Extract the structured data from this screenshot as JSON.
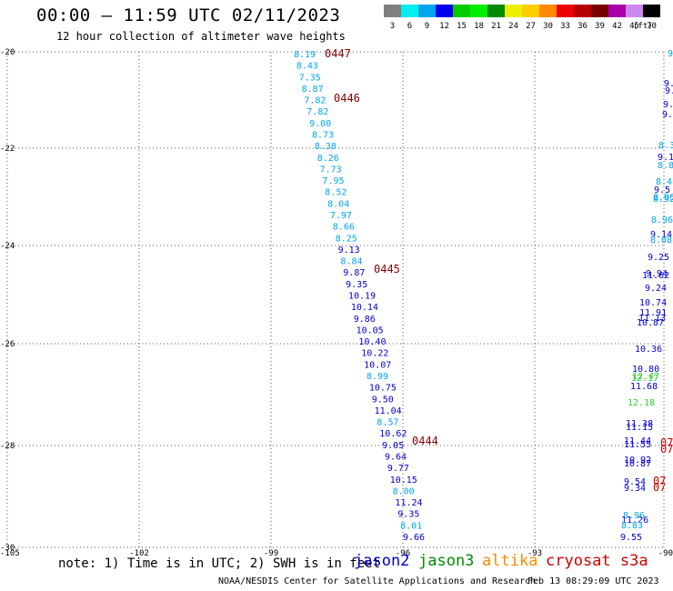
{
  "header": {
    "title": "00:00 – 11:59 UTC 02/11/2023",
    "subtitle": "12 hour collection of altimeter wave heights"
  },
  "color_scale": {
    "bins": [
      {
        "label": "3",
        "color": "#7f7f7f"
      },
      {
        "label": "6",
        "color": "#00eeee"
      },
      {
        "label": "9",
        "color": "#00a6ee"
      },
      {
        "label": "12",
        "color": "#0000ee"
      },
      {
        "label": "15",
        "color": "#00cc00"
      },
      {
        "label": "18",
        "color": "#00ee00"
      },
      {
        "label": "21",
        "color": "#008a00"
      },
      {
        "label": "24",
        "color": "#eeee00"
      },
      {
        "label": "27",
        "color": "#ffcc00"
      },
      {
        "label": "30",
        "color": "#ff8800"
      },
      {
        "label": "33",
        "color": "#ee0000"
      },
      {
        "label": "36",
        "color": "#b80000"
      },
      {
        "label": "39",
        "color": "#770000"
      },
      {
        "label": "42",
        "color": "#aa00aa"
      },
      {
        "label": "45",
        "color": "#cc88ee"
      },
      {
        "label": "70",
        "color": "#000000"
      }
    ],
    "unit_label": "(ft)"
  },
  "map": {
    "lat_labels": [
      "-20",
      "-22",
      "-24",
      "-26",
      "-28",
      "-30"
    ],
    "lon_labels": [
      "-105",
      "-102",
      "-99",
      "-96",
      "-93",
      "-90"
    ],
    "lat_range": [
      -30,
      -20
    ],
    "lon_range": [
      -105,
      -90
    ],
    "grid": "dotted"
  },
  "track_main": [
    {
      "v": "8.19",
      "c": "#00a6ee"
    },
    {
      "v": "8.43",
      "c": "#00a6ee"
    },
    {
      "v": "7.35",
      "c": "#00a6ee"
    },
    {
      "v": "8.87",
      "c": "#00a6ee"
    },
    {
      "v": "7.82",
      "c": "#00a6ee"
    },
    {
      "v": "7.82",
      "c": "#00a6ee"
    },
    {
      "v": "9.00",
      "c": "#00a6ee"
    },
    {
      "v": "8.73",
      "c": "#00a6ee"
    },
    {
      "v": "8.38",
      "c": "#00a6ee"
    },
    {
      "v": "8.26",
      "c": "#00a6ee"
    },
    {
      "v": "7.73",
      "c": "#00a6ee"
    },
    {
      "v": "7.95",
      "c": "#00a6ee"
    },
    {
      "v": "8.52",
      "c": "#00a6ee"
    },
    {
      "v": "8.04",
      "c": "#00a6ee"
    },
    {
      "v": "7.97",
      "c": "#00a6ee"
    },
    {
      "v": "8.66",
      "c": "#00a6ee"
    },
    {
      "v": "8.25",
      "c": "#00a6ee"
    },
    {
      "v": "9.13",
      "c": "#0000cc"
    },
    {
      "v": "8.84",
      "c": "#00a6ee"
    },
    {
      "v": "9.87",
      "c": "#0000cc"
    },
    {
      "v": "9.35",
      "c": "#0000cc"
    },
    {
      "v": "10.19",
      "c": "#0000cc"
    },
    {
      "v": "10.14",
      "c": "#0000cc"
    },
    {
      "v": "9.86",
      "c": "#0000cc"
    },
    {
      "v": "10.05",
      "c": "#0000cc"
    },
    {
      "v": "10.40",
      "c": "#0000cc"
    },
    {
      "v": "10.22",
      "c": "#0000cc"
    },
    {
      "v": "10.07",
      "c": "#0000cc"
    },
    {
      "v": "8.99",
      "c": "#00a6ee"
    },
    {
      "v": "10.75",
      "c": "#0000cc"
    },
    {
      "v": "9.50",
      "c": "#0000cc"
    },
    {
      "v": "11.04",
      "c": "#0000cc"
    },
    {
      "v": "8.57",
      "c": "#00a6ee"
    },
    {
      "v": "10.62",
      "c": "#0000cc"
    },
    {
      "v": "9.05",
      "c": "#0000cc"
    },
    {
      "v": "9.64",
      "c": "#0000cc"
    },
    {
      "v": "9.77",
      "c": "#0000cc"
    },
    {
      "v": "10.15",
      "c": "#0000cc"
    },
    {
      "v": "8.00",
      "c": "#00a6ee"
    },
    {
      "v": "11.24",
      "c": "#0000cc"
    },
    {
      "v": "9.35",
      "c": "#0000cc"
    },
    {
      "v": "8.01",
      "c": "#00a6ee"
    },
    {
      "v": "9.66",
      "c": "#0000cc"
    }
  ],
  "time_labels": [
    {
      "t": "0447",
      "c": "#800000"
    },
    {
      "t": "0446",
      "c": "#800000"
    },
    {
      "t": "0445",
      "c": "#800000"
    },
    {
      "t": "0444",
      "c": "#800000"
    }
  ],
  "track_right": [
    {
      "v": "9",
      "c": "#00a6ee"
    },
    {
      "v": "9.",
      "c": "#0000cc"
    },
    {
      "v": "9.",
      "c": "#0000cc"
    },
    {
      "v": "9.",
      "c": "#0000cc"
    },
    {
      "v": "9.",
      "c": "#0000cc"
    },
    {
      "v": "8.3",
      "c": "#00a6ee"
    },
    {
      "v": "9.1",
      "c": "#0000cc"
    },
    {
      "v": "8.8",
      "c": "#00a6ee"
    },
    {
      "v": "8.4",
      "c": "#00a6ee"
    },
    {
      "v": "9.5",
      "c": "#0000cc"
    },
    {
      "v": "8.96",
      "c": "#00a6ee"
    },
    {
      "v": "8.92",
      "c": "#00a6ee"
    },
    {
      "v": "8.96",
      "c": "#00a6ee"
    },
    {
      "v": "9.14",
      "c": "#0000cc"
    },
    {
      "v": "8.08",
      "c": "#00a6ee"
    },
    {
      "v": "9.25",
      "c": "#0000cc"
    },
    {
      "v": "9.94",
      "c": "#0000cc"
    },
    {
      "v": "11.62",
      "c": "#0000cc"
    },
    {
      "v": "9.24",
      "c": "#0000cc"
    },
    {
      "v": "10.74",
      "c": "#0000cc"
    },
    {
      "v": "11.91",
      "c": "#0000cc"
    },
    {
      "v": "11.13",
      "c": "#0000cc"
    },
    {
      "v": "10.87",
      "c": "#0000cc"
    },
    {
      "v": "10.36",
      "c": "#0000cc"
    },
    {
      "v": "10.80",
      "c": "#0000cc"
    },
    {
      "v": "12.47",
      "c": "#33cc33"
    },
    {
      "v": "12.17",
      "c": "#33cc33"
    },
    {
      "v": "11.68",
      "c": "#0000cc"
    },
    {
      "v": "12.18",
      "c": "#33cc33"
    },
    {
      "v": "11.38",
      "c": "#0000cc"
    },
    {
      "v": "11.15",
      "c": "#0000cc"
    },
    {
      "v": "11.44",
      "c": "#0000cc"
    },
    {
      "v": "11.55",
      "c": "#0000cc"
    },
    {
      "v": "10.92",
      "c": "#0000cc"
    },
    {
      "v": "10.87",
      "c": "#0000cc"
    },
    {
      "v": "9.54",
      "c": "#0000cc"
    },
    {
      "v": "9.34",
      "c": "#0000cc"
    },
    {
      "v": "8.96",
      "c": "#00a6ee"
    },
    {
      "v": "11.26",
      "c": "#0000cc"
    },
    {
      "v": "8.83",
      "c": "#00a6ee"
    },
    {
      "v": "9.55",
      "c": "#0000cc"
    }
  ],
  "right_time_labels": [
    {
      "t": "07",
      "c": "#cc0000"
    },
    {
      "t": "07",
      "c": "#cc0000"
    },
    {
      "t": "07",
      "c": "#cc0000"
    },
    {
      "t": "07",
      "c": "#cc0000"
    }
  ],
  "legend": {
    "note": "note: 1) Time is in UTC; 2) SWH is in feet",
    "items": [
      {
        "label": "jason2",
        "color": "#0000cc"
      },
      {
        "label": "jason3",
        "color": "#008a00"
      },
      {
        "label": "altika",
        "color": "#ff8800"
      },
      {
        "label": "cryosat s3a",
        "color": "#cc0000"
      }
    ]
  },
  "footer": {
    "credit": "NOAA/NESDIS Center for Satellite Applications and Research",
    "timestamp": "Feb 13 08:29:09 UTC 2023"
  }
}
